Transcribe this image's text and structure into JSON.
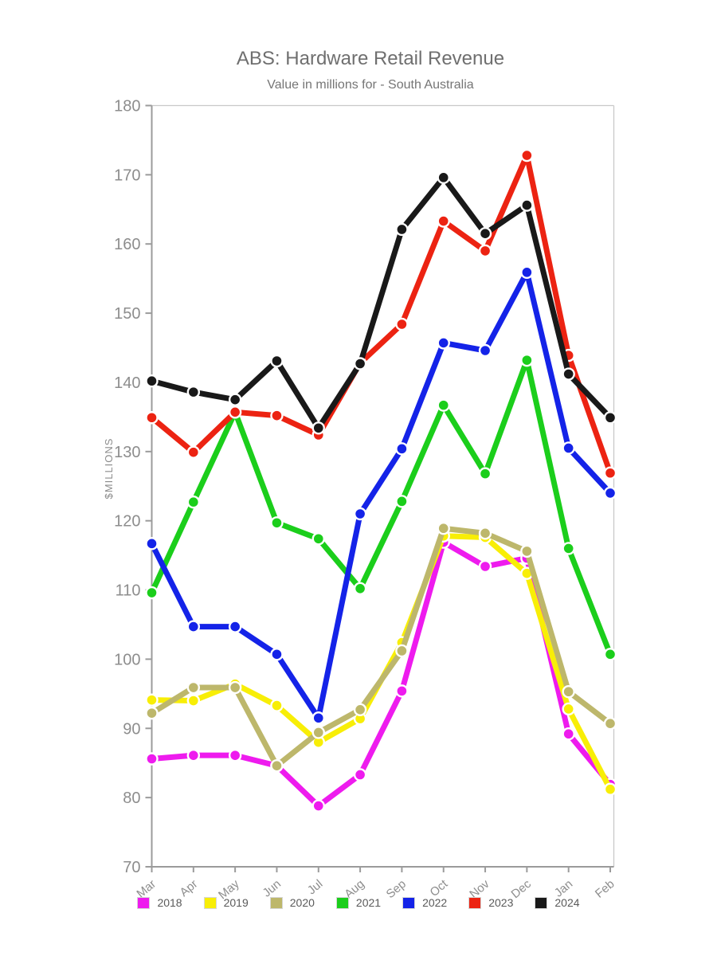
{
  "chart_data": {
    "type": "line",
    "title": "ABS: Hardware Retail Revenue",
    "subtitle": "Value in millions for - South Australia",
    "xlabel": "",
    "ylabel": "$MILLIONS",
    "ylim": [
      70,
      180
    ],
    "y_ticks": [
      70,
      80,
      90,
      100,
      110,
      120,
      130,
      140,
      150,
      160,
      170,
      180
    ],
    "grid": false,
    "legend_position": "bottom",
    "categories": [
      "Mar",
      "Apr",
      "May",
      "Jun",
      "Jul",
      "Aug",
      "Sep",
      "Oct",
      "Nov",
      "Dec",
      "Jan",
      "Feb"
    ],
    "series": [
      {
        "name": "2018",
        "color": "#EE1BEE",
        "values": [
          85.6,
          86.1,
          86.1,
          84.6,
          78.8,
          83.3,
          95.4,
          116.9,
          113.4,
          114.6,
          89.2,
          81.9
        ]
      },
      {
        "name": "2019",
        "color": "#F8EE06",
        "values": [
          94.1,
          94.0,
          96.4,
          93.3,
          88.0,
          91.4,
          102.4,
          117.8,
          117.6,
          112.4,
          92.8,
          81.2
        ]
      },
      {
        "name": "2020",
        "color": "#BDB76B",
        "values": [
          92.2,
          95.9,
          95.9,
          84.6,
          89.4,
          92.7,
          101.2,
          118.9,
          118.2,
          115.6,
          95.3,
          90.7
        ]
      },
      {
        "name": "2021",
        "color": "#1BCE1B",
        "values": [
          109.6,
          122.7,
          135.7,
          119.7,
          117.4,
          110.2,
          122.8,
          136.7,
          126.8,
          143.2,
          116.0,
          100.7
        ]
      },
      {
        "name": "2022",
        "color": "#1423E8",
        "values": [
          116.7,
          104.7,
          104.7,
          100.7,
          91.5,
          121.0,
          130.4,
          145.7,
          144.6,
          155.9,
          130.5,
          124.0
        ]
      },
      {
        "name": "2023",
        "color": "#EC2312",
        "values": [
          134.9,
          129.9,
          135.7,
          135.2,
          132.4,
          142.8,
          148.4,
          163.3,
          159.0,
          172.8,
          143.9,
          126.9
        ]
      },
      {
        "name": "2024",
        "color": "#191919",
        "values": [
          140.2,
          138.6,
          137.5,
          143.1,
          133.4,
          142.7,
          162.1,
          169.6,
          161.5,
          165.6,
          141.2,
          134.9
        ]
      }
    ]
  }
}
